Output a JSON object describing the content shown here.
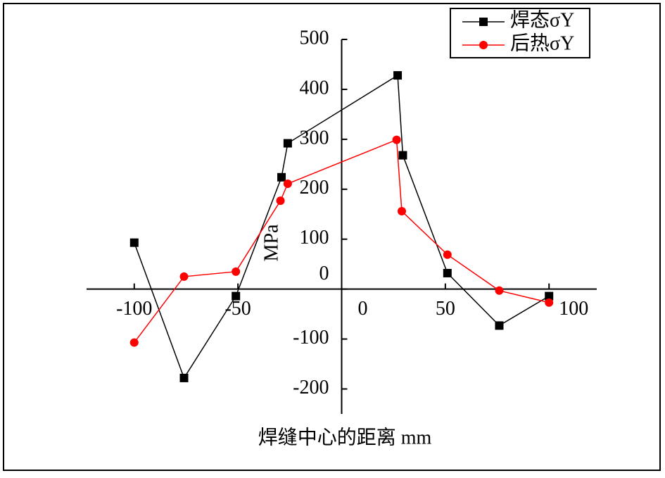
{
  "chart_data": {
    "type": "line",
    "xlabel": "焊缝中心的距离  mm",
    "ylabel": "MPa",
    "xlim": [
      -123,
      123
    ],
    "ylim": [
      -250,
      500
    ],
    "xticks": [
      -100,
      -50,
      0,
      50,
      100
    ],
    "yticks": [
      -200,
      -100,
      0,
      100,
      200,
      300,
      400,
      500
    ],
    "legend": "upper right",
    "series": [
      {
        "name": "焊态σY",
        "color": "#000000",
        "marker": "square",
        "x": [
          -100,
          -76,
          -51,
          -29,
          -26,
          27,
          29.5,
          51,
          76,
          100
        ],
        "values": [
          93,
          -178,
          -14,
          224,
          292,
          428,
          268,
          32,
          -73,
          -14
        ]
      },
      {
        "name": "后热σY",
        "color": "#ff0000",
        "marker": "circle",
        "x": [
          -100,
          -76,
          -51,
          -29.5,
          -26,
          26.5,
          29,
          51,
          76,
          100
        ],
        "values": [
          -107,
          25,
          35,
          177,
          211,
          299,
          156,
          69,
          -3,
          -27
        ]
      }
    ]
  }
}
